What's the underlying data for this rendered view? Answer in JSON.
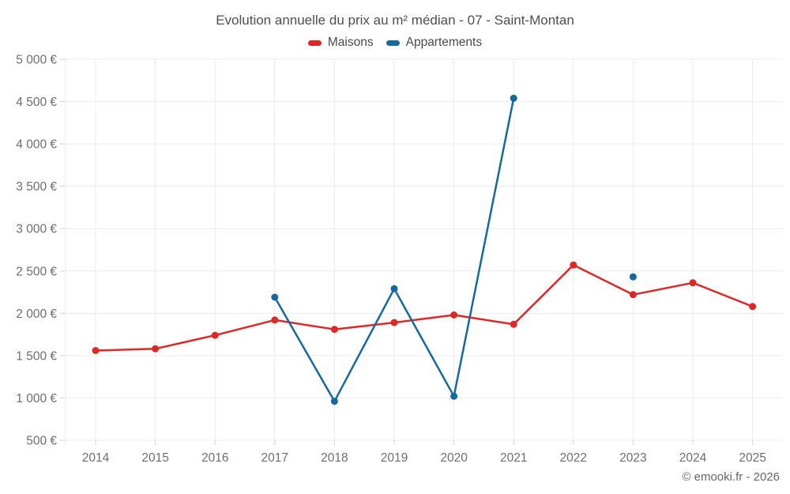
{
  "header": {
    "title": "Evolution annuelle du prix au m² médian - 07 - Saint-Montan"
  },
  "footer": {
    "text": "© emooki.fr - 2026"
  },
  "chart_data": {
    "type": "line",
    "title": "Evolution annuelle du prix au m² médian - 07 - Saint-Montan",
    "categories": [
      "2014",
      "2015",
      "2016",
      "2017",
      "2018",
      "2019",
      "2020",
      "2021",
      "2022",
      "2023",
      "2024",
      "2025"
    ],
    "series": [
      {
        "name": "Maisons",
        "color": "#df2727",
        "values": [
          1560,
          1580,
          1740,
          1920,
          1810,
          1890,
          1980,
          1870,
          2570,
          2220,
          2360,
          2080
        ]
      },
      {
        "name": "Appartements",
        "color": "#16699f",
        "values": [
          null,
          null,
          null,
          2190,
          960,
          2290,
          1020,
          4540,
          null,
          2430,
          null,
          null
        ]
      }
    ],
    "ylabel_suffix": " €",
    "ylim": [
      500,
      5000
    ],
    "ytick_step": 500,
    "xlabel": "",
    "ylabel": "",
    "grid": true,
    "legend_position": "top",
    "gap_breaks_line": true,
    "colors": {
      "grid": "#ebebeb",
      "tick": "#d4d4d4",
      "axis_label": "#6e6e6e",
      "title": "#4e4e4e",
      "legend_text": "#4a4a4a"
    }
  }
}
